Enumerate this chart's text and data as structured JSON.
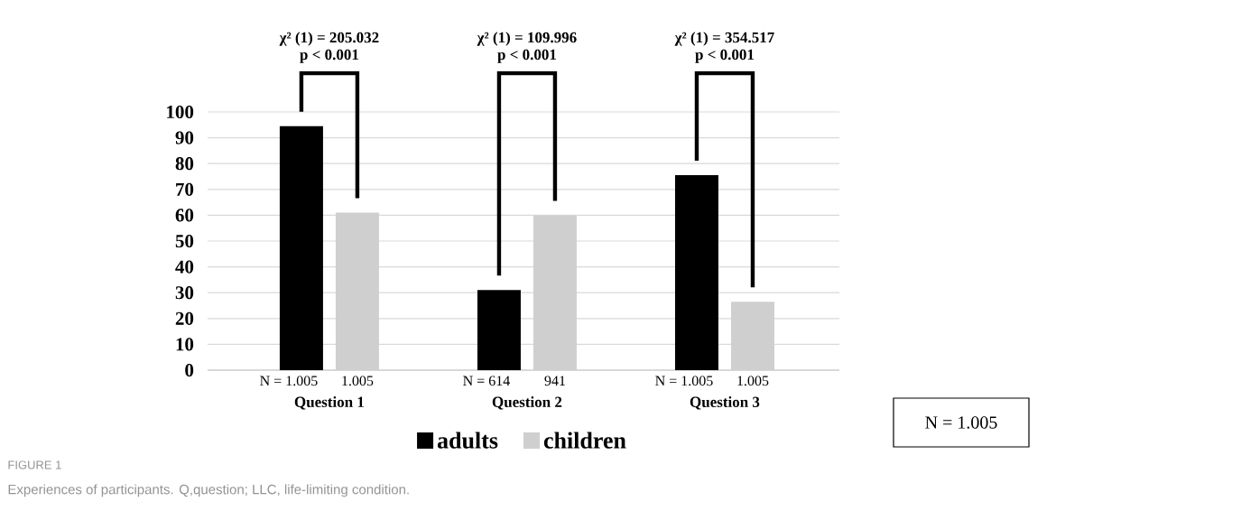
{
  "chart_data": {
    "type": "bar",
    "title": "FIGURE 1",
    "subtitle": "Experiences of participants. Q,question; LLC, life-limiting condition.",
    "categories": [
      "Question 1",
      "Question 2",
      "Question 3"
    ],
    "series": [
      {
        "name": "adults",
        "color": "#000000",
        "values": [
          94.5,
          31,
          75.5
        ]
      },
      {
        "name": "children",
        "color": "#d0cfcf",
        "values": [
          61,
          60,
          26.5
        ]
      }
    ],
    "ylim": [
      0,
      100
    ],
    "yticks": [
      0,
      10,
      20,
      30,
      40,
      50,
      60,
      70,
      80,
      90,
      100
    ],
    "grid": "y",
    "legend": "bottom",
    "annotations": [
      "χ² (1) = 205.032",
      "p < 0.001",
      "χ² (1) = 109.996",
      "p < 0.001",
      "χ² (1) = 354.517",
      "p < 0.001",
      "N = 1.005",
      "1.005",
      "N =   614",
      "941",
      "N = 1.005",
      "1.005",
      "N = 1.005"
    ]
  }
}
